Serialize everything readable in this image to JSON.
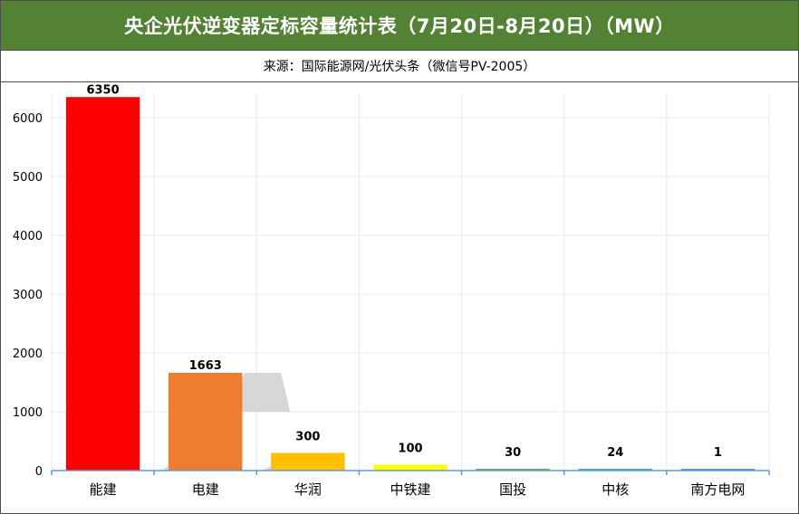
{
  "header": {
    "title": "央企光伏逆变器定标容量统计表（7月20日-8月20日）（MW）",
    "subtitle": "来源：国际能源网/光伏头条（微信号PV-2005）"
  },
  "colors": {
    "title_bg": "#548235",
    "gridline": "#e8e8e8",
    "axis": "#5b9bd5"
  },
  "chart_data": {
    "type": "bar",
    "title": "央企光伏逆变器定标容量统计表（7月20日-8月20日）（MW）",
    "subtitle": "来源：国际能源网/光伏头条（微信号PV-2005）",
    "categories": [
      "能建",
      "电建",
      "华润",
      "中铁建",
      "国投",
      "中核",
      "南方电网"
    ],
    "values": [
      6350,
      1663,
      300,
      100,
      30,
      24,
      1
    ],
    "value_labels": [
      "6350",
      "1663",
      "300",
      "100",
      "30",
      "24",
      "1"
    ],
    "bar_colors": [
      "#ff0000",
      "#ed7d31",
      "#ffc000",
      "#ffff00",
      "#70ad47",
      "#4bacc6",
      "#5b9bd5"
    ],
    "yticks": [
      0,
      1000,
      2000,
      3000,
      4000,
      5000,
      6000
    ],
    "ylim": [
      0,
      6400
    ],
    "xlabel": "",
    "ylabel": "",
    "grid": true,
    "legend": "none"
  }
}
